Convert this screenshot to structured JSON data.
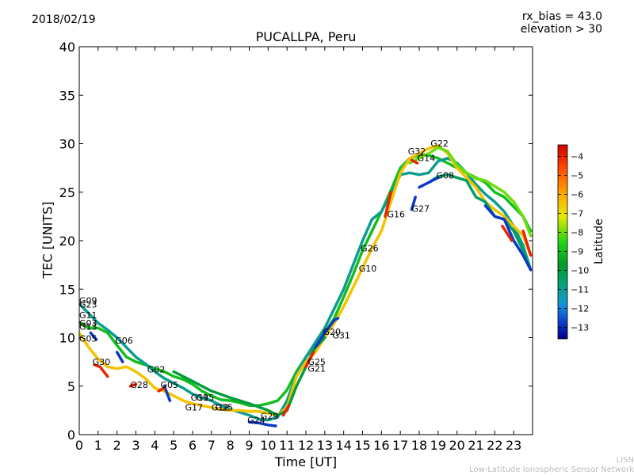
{
  "header": {
    "date": "2018/02/19",
    "rx_bias": "rx_bias = 43.0",
    "elevation": "elevation > 30"
  },
  "watermark": {
    "line1": "LISN",
    "line2": "Low-Latitude Ionospheric Sensor Network"
  },
  "chart_data": {
    "type": "scatter",
    "title": "PUCALLPA, Peru",
    "xlabel": "Time [UT]",
    "ylabel": "TEC [UNITS]",
    "xlim": [
      0,
      24
    ],
    "ylim": [
      0,
      40
    ],
    "x_ticks": [
      0,
      1,
      2,
      3,
      4,
      5,
      6,
      7,
      8,
      9,
      10,
      11,
      12,
      13,
      14,
      15,
      16,
      17,
      18,
      19,
      20,
      21,
      22,
      23
    ],
    "y_ticks": [
      0,
      5,
      10,
      15,
      20,
      25,
      30,
      35,
      40
    ],
    "colorbar": {
      "label": "Latitude",
      "range": [
        -13.6,
        -3.4
      ],
      "ticks": [
        -4,
        -5,
        -6,
        -7,
        -8,
        -9,
        -10,
        -11,
        -12,
        -13
      ]
    },
    "series": [
      {
        "name": "A",
        "lat": -9.0,
        "points": [
          [
            0,
            11.6
          ],
          [
            0.5,
            11.0
          ],
          [
            1.0,
            11.0
          ],
          [
            1.5,
            10.5
          ],
          [
            2.0,
            9.2
          ],
          [
            2.5,
            8.0
          ],
          [
            3.0,
            7.5
          ],
          [
            3.5,
            7.2
          ],
          [
            4.0,
            6.8
          ],
          [
            4.5,
            6.5
          ],
          [
            5.0,
            6.0
          ],
          [
            5.5,
            5.7
          ],
          [
            6.0,
            5.2
          ],
          [
            6.5,
            4.5
          ],
          [
            7.0,
            4.0
          ],
          [
            7.5,
            3.6
          ],
          [
            8.0,
            3.5
          ],
          [
            8.5,
            3.3
          ],
          [
            9.0,
            3.0
          ],
          [
            9.5,
            3.0
          ],
          [
            10.0,
            3.2
          ],
          [
            10.5,
            3.5
          ],
          [
            11.0,
            4.6
          ],
          [
            11.5,
            6.5
          ],
          [
            12.0,
            8.0
          ],
          [
            12.5,
            9.0
          ],
          [
            13.0,
            10.5
          ],
          [
            13.5,
            12.0
          ],
          [
            14.0,
            14.2
          ],
          [
            14.5,
            16.5
          ],
          [
            15.0,
            19.0
          ],
          [
            15.5,
            21.0
          ],
          [
            16.0,
            23.0
          ],
          [
            16.5,
            25.2
          ],
          [
            17.0,
            27.5
          ],
          [
            17.5,
            28.5
          ],
          [
            18.0,
            28.8
          ],
          [
            18.5,
            28.8
          ],
          [
            19.0,
            28.5
          ],
          [
            19.5,
            28.0
          ],
          [
            20.0,
            27.5
          ],
          [
            20.5,
            27.0
          ],
          [
            21.0,
            26.5
          ],
          [
            21.5,
            26.0
          ],
          [
            22.0,
            25.0
          ],
          [
            22.5,
            24.5
          ],
          [
            23.0,
            23.5
          ],
          [
            23.5,
            22.5
          ],
          [
            23.9,
            21.0
          ]
        ]
      },
      {
        "name": "B",
        "lat": -11.0,
        "points": [
          [
            0,
            13.5
          ],
          [
            0.5,
            12.5
          ],
          [
            1.0,
            11.5
          ],
          [
            1.5,
            10.8
          ],
          [
            2.0,
            10.0
          ],
          [
            2.5,
            9.0
          ],
          [
            3.0,
            8.0
          ],
          [
            3.5,
            7.3
          ],
          [
            4.0,
            6.5
          ],
          [
            4.5,
            5.8
          ],
          [
            5.0,
            5.3
          ],
          [
            5.5,
            4.8
          ],
          [
            6.0,
            4.2
          ],
          [
            6.5,
            3.8
          ],
          [
            7.0,
            3.5
          ],
          [
            7.5,
            3.0
          ],
          [
            8.0,
            2.6
          ],
          [
            8.5,
            2.3
          ],
          [
            9.0,
            2.0
          ],
          [
            9.5,
            1.6
          ],
          [
            10.0,
            1.5
          ],
          [
            10.5,
            1.8
          ],
          [
            11.0,
            3.5
          ],
          [
            11.5,
            6.2
          ],
          [
            12.0,
            8.0
          ],
          [
            12.5,
            9.5
          ],
          [
            13.0,
            11.0
          ],
          [
            13.5,
            13.0
          ],
          [
            14.0,
            15.0
          ],
          [
            14.5,
            17.5
          ],
          [
            15.0,
            20.0
          ],
          [
            15.5,
            22.2
          ],
          [
            16.0,
            23.0
          ],
          [
            16.5,
            24.8
          ],
          [
            17.0,
            26.8
          ],
          [
            17.5,
            27.0
          ],
          [
            18.0,
            26.8
          ],
          [
            18.5,
            27.0
          ],
          [
            19.0,
            28.2
          ],
          [
            19.5,
            28.5
          ],
          [
            20.0,
            28.0
          ],
          [
            20.5,
            27.0
          ],
          [
            21.0,
            25.8
          ],
          [
            21.5,
            24.8
          ],
          [
            22.0,
            24.0
          ],
          [
            22.5,
            23.0
          ],
          [
            23.0,
            21.5
          ],
          [
            23.5,
            19.5
          ],
          [
            23.9,
            17.0
          ]
        ]
      },
      {
        "name": "C",
        "lat": -6.5,
        "points": [
          [
            0,
            10.5
          ],
          [
            0.5,
            9.0
          ],
          [
            1.0,
            7.8
          ],
          [
            1.5,
            7.0
          ],
          [
            2.0,
            6.8
          ],
          [
            2.5,
            7.0
          ],
          [
            3.0,
            6.5
          ],
          [
            3.5,
            5.8
          ],
          [
            4.0,
            4.8
          ],
          [
            4.5,
            4.5
          ],
          [
            5.0,
            4.0
          ],
          [
            5.5,
            3.5
          ],
          [
            6.0,
            3.2
          ],
          [
            6.5,
            3.0
          ],
          [
            7.0,
            2.8
          ],
          [
            7.5,
            2.6
          ],
          [
            8.0,
            2.5
          ],
          [
            8.5,
            2.5
          ],
          [
            9.0,
            2.4
          ],
          [
            9.5,
            2.4
          ],
          [
            10.0,
            2.2
          ],
          [
            10.5,
            2.0
          ],
          [
            11.0,
            2.8
          ],
          [
            11.5,
            6.0
          ],
          [
            12.0,
            7.5
          ],
          [
            12.5,
            8.5
          ],
          [
            13.0,
            10.0
          ],
          [
            13.5,
            11.5
          ],
          [
            14.0,
            13.2
          ],
          [
            14.5,
            15.2
          ],
          [
            15.0,
            17.2
          ],
          [
            15.5,
            19.2
          ],
          [
            16.0,
            21.0
          ],
          [
            16.5,
            24.0
          ],
          [
            17.0,
            27.0
          ],
          [
            17.5,
            28.5
          ],
          [
            18.0,
            29.0
          ],
          [
            18.5,
            29.5
          ],
          [
            19.0,
            29.8
          ],
          [
            19.5,
            29.0
          ],
          [
            20.0,
            27.5
          ],
          [
            20.5,
            26.5
          ],
          [
            21.0,
            25.5
          ],
          [
            21.5,
            24.0
          ],
          [
            22.0,
            23.2
          ],
          [
            22.5,
            22.5
          ],
          [
            23.0,
            21.5
          ],
          [
            23.5,
            20.5
          ],
          [
            23.9,
            18.5
          ]
        ]
      },
      {
        "name": "D",
        "lat": -8.0,
        "points": [
          [
            17.5,
            28.0
          ],
          [
            18.0,
            28.5
          ],
          [
            18.5,
            29.0
          ],
          [
            19.0,
            29.6
          ],
          [
            19.5,
            29.2
          ],
          [
            20.0,
            27.8
          ],
          [
            20.5,
            27.0
          ],
          [
            21.0,
            26.4
          ],
          [
            21.5,
            26.2
          ],
          [
            22.0,
            25.6
          ],
          [
            22.5,
            25.0
          ],
          [
            23.0,
            24.0
          ],
          [
            23.5,
            22.5
          ],
          [
            23.9,
            20.5
          ]
        ]
      },
      {
        "name": "E",
        "lat": -10.0,
        "points": [
          [
            5.0,
            6.5
          ],
          [
            6.0,
            5.5
          ],
          [
            7.0,
            4.5
          ],
          [
            8.0,
            3.8
          ],
          [
            9.0,
            3.2
          ],
          [
            10.0,
            2.5
          ],
          [
            10.5,
            2.0
          ],
          [
            11.0,
            2.5
          ],
          [
            11.5,
            5.0
          ],
          [
            12.0,
            7.0
          ],
          [
            12.5,
            9.0
          ],
          [
            13.0,
            10.0
          ]
        ]
      },
      {
        "name": "F",
        "lat": -10.5,
        "points": [
          [
            18.5,
            26.0
          ],
          [
            19.0,
            26.6
          ],
          [
            19.5,
            26.8
          ],
          [
            20.0,
            26.5
          ],
          [
            20.5,
            26.2
          ],
          [
            21.0,
            24.5
          ],
          [
            21.5,
            24.0
          ],
          [
            22.0,
            22.5
          ],
          [
            22.5,
            22.2
          ],
          [
            23.0,
            21.0
          ],
          [
            23.5,
            19.0
          ],
          [
            23.9,
            17.0
          ]
        ]
      },
      {
        "name": "G",
        "lat": -12.8,
        "points": [
          [
            21.5,
            23.6
          ],
          [
            22.0,
            22.5
          ],
          [
            22.5,
            22.2
          ],
          [
            23.0,
            20.0
          ],
          [
            23.5,
            18.5
          ],
          [
            23.9,
            17.0
          ]
        ]
      },
      {
        "name": "H",
        "lat": -12.8,
        "points": [
          [
            18.0,
            25.5
          ],
          [
            18.5,
            26.0
          ],
          [
            19.0,
            26.5
          ]
        ]
      },
      {
        "name": "I",
        "lat": -12.8,
        "points": [
          [
            12.5,
            9.0
          ],
          [
            13.0,
            10.5
          ],
          [
            13.5,
            11.8
          ],
          [
            13.7,
            12.0
          ]
        ]
      },
      {
        "name": "J",
        "lat": -12.8,
        "points": [
          [
            9.0,
            1.3
          ],
          [
            9.5,
            1.2
          ],
          [
            10.0,
            1.0
          ],
          [
            10.4,
            0.9
          ]
        ]
      },
      {
        "name": "K",
        "lat": -12.8,
        "points": [
          [
            2.0,
            8.5
          ],
          [
            2.3,
            7.5
          ]
        ]
      },
      {
        "name": "L",
        "lat": -12.8,
        "points": [
          [
            4.5,
            5.0
          ],
          [
            4.8,
            3.5
          ]
        ]
      },
      {
        "name": "M",
        "lat": -12.8,
        "points": [
          [
            0.6,
            10.5
          ],
          [
            0.9,
            9.8
          ]
        ]
      },
      {
        "name": "N",
        "lat": -12.8,
        "points": [
          [
            17.6,
            23.2
          ],
          [
            17.8,
            24.5
          ]
        ]
      },
      {
        "name": "O",
        "lat": -4.0,
        "points": [
          [
            0.8,
            7.2
          ],
          [
            1.1,
            7.0
          ],
          [
            1.5,
            6.0
          ]
        ]
      },
      {
        "name": "P",
        "lat": -4.0,
        "points": [
          [
            16.2,
            22.5
          ],
          [
            16.5,
            25.0
          ]
        ]
      },
      {
        "name": "Q",
        "lat": -4.0,
        "points": [
          [
            23.5,
            21.0
          ],
          [
            23.9,
            18.5
          ]
        ]
      },
      {
        "name": "R",
        "lat": -4.0,
        "points": [
          [
            4.2,
            4.5
          ],
          [
            4.5,
            4.8
          ]
        ]
      },
      {
        "name": "S",
        "lat": -4.0,
        "points": [
          [
            10.8,
            2.0
          ],
          [
            11.1,
            3.0
          ]
        ]
      },
      {
        "name": "T",
        "lat": -4.0,
        "points": [
          [
            12.0,
            7.0
          ],
          [
            12.4,
            8.5
          ]
        ]
      },
      {
        "name": "U",
        "lat": -4.0,
        "points": [
          [
            2.7,
            5.0
          ],
          [
            3.0,
            5.2
          ]
        ]
      },
      {
        "name": "V",
        "lat": -4.0,
        "points": [
          [
            17.6,
            28.3
          ],
          [
            17.9,
            28.0
          ]
        ]
      },
      {
        "name": "W",
        "lat": -4.0,
        "points": [
          [
            22.4,
            21.5
          ],
          [
            22.9,
            20.0
          ]
        ]
      }
    ],
    "annotations": [
      {
        "text": "G09",
        "x": 0.0,
        "y": 13.5
      },
      {
        "text": "G23",
        "x": 0.0,
        "y": 13.1
      },
      {
        "text": "G11",
        "x": 0.0,
        "y": 12.0
      },
      {
        "text": "G03",
        "x": 0.0,
        "y": 11.2
      },
      {
        "text": "G13",
        "x": 0.0,
        "y": 10.8
      },
      {
        "text": "G05",
        "x": 0.0,
        "y": 9.6
      },
      {
        "text": "G06",
        "x": 1.9,
        "y": 9.4
      },
      {
        "text": "G30",
        "x": 0.7,
        "y": 7.2
      },
      {
        "text": "G02",
        "x": 3.6,
        "y": 6.4
      },
      {
        "text": "G28",
        "x": 2.7,
        "y": 4.8
      },
      {
        "text": "G05",
        "x": 4.3,
        "y": 4.8
      },
      {
        "text": "G19",
        "x": 5.9,
        "y": 3.5
      },
      {
        "text": "G15",
        "x": 6.2,
        "y": 3.5
      },
      {
        "text": "G17",
        "x": 5.6,
        "y": 2.5
      },
      {
        "text": "G12",
        "x": 7.0,
        "y": 2.5
      },
      {
        "text": "G25",
        "x": 7.2,
        "y": 2.5
      },
      {
        "text": "G29",
        "x": 9.6,
        "y": 1.6
      },
      {
        "text": "G24",
        "x": 8.9,
        "y": 1.2
      },
      {
        "text": "G25",
        "x": 12.1,
        "y": 7.2
      },
      {
        "text": "G21",
        "x": 12.1,
        "y": 6.5
      },
      {
        "text": "G20",
        "x": 12.9,
        "y": 10.3
      },
      {
        "text": "G31",
        "x": 13.4,
        "y": 9.9
      },
      {
        "text": "G10",
        "x": 14.8,
        "y": 16.8
      },
      {
        "text": "G26",
        "x": 14.9,
        "y": 18.9
      },
      {
        "text": "G16",
        "x": 16.3,
        "y": 22.4
      },
      {
        "text": "G27",
        "x": 17.6,
        "y": 23.0
      },
      {
        "text": "G32",
        "x": 17.4,
        "y": 28.9
      },
      {
        "text": "G14",
        "x": 17.9,
        "y": 28.2
      },
      {
        "text": "G22",
        "x": 18.6,
        "y": 29.7
      },
      {
        "text": "G08",
        "x": 18.9,
        "y": 26.4
      }
    ]
  }
}
